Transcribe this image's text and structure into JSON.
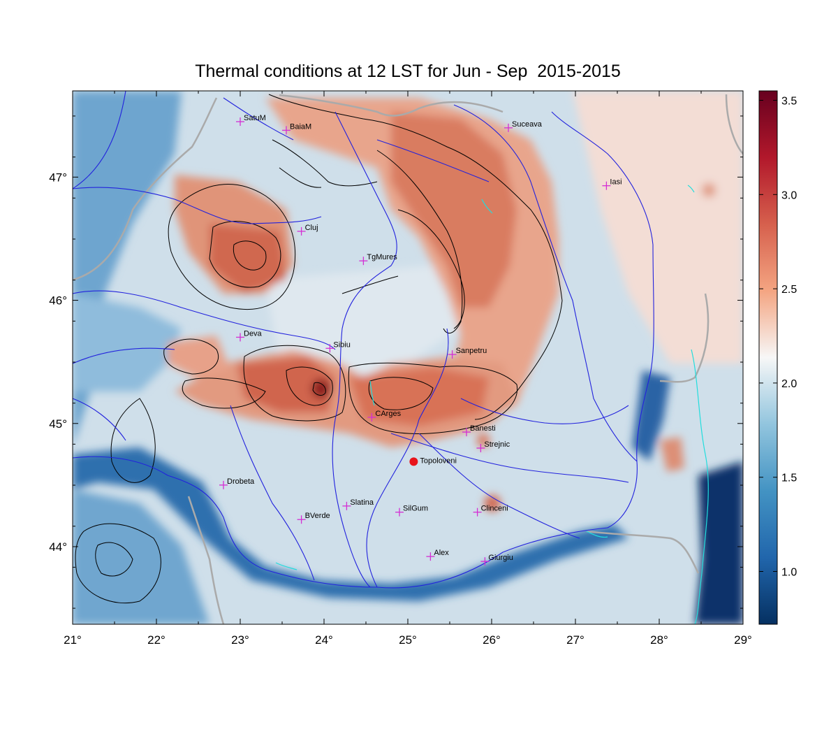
{
  "title": "Thermal conditions at 12 LST for Jun - Sep  2015-2015",
  "axes": {
    "lon_ticks": [
      "21°",
      "22°",
      "23°",
      "24°",
      "25°",
      "26°",
      "27°",
      "28°",
      "29°"
    ],
    "lat_ticks": [
      "47°",
      "46°",
      "45°",
      "44°"
    ]
  },
  "colorbar": {
    "ticks": [
      "3.5",
      "3.0",
      "2.5",
      "2.0",
      "1.5",
      "1.0"
    ],
    "colors": [
      "#67001f",
      "#b2182b",
      "#d6604d",
      "#f4a582",
      "#f7f7f7",
      "#92c5de",
      "#4393c3",
      "#2166ac",
      "#053061"
    ]
  },
  "stations": [
    {
      "name": "SatuM",
      "lon": 23.0,
      "lat": 47.45
    },
    {
      "name": "BaiaM",
      "lon": 23.55,
      "lat": 47.38
    },
    {
      "name": "Suceava",
      "lon": 26.2,
      "lat": 47.4
    },
    {
      "name": "Iasi",
      "lon": 27.37,
      "lat": 46.93
    },
    {
      "name": "Cluj",
      "lon": 23.73,
      "lat": 46.56
    },
    {
      "name": "TgMures",
      "lon": 24.47,
      "lat": 46.32
    },
    {
      "name": "Deva",
      "lon": 23.0,
      "lat": 45.7
    },
    {
      "name": "Sibiu",
      "lon": 24.07,
      "lat": 45.61
    },
    {
      "name": "Sanpetru",
      "lon": 25.53,
      "lat": 45.56
    },
    {
      "name": "CArges",
      "lon": 24.57,
      "lat": 45.05
    },
    {
      "name": "Banesti",
      "lon": 25.7,
      "lat": 44.93
    },
    {
      "name": "Strejnic",
      "lon": 25.87,
      "lat": 44.8
    },
    {
      "name": "Drobeta",
      "lon": 22.8,
      "lat": 44.5
    },
    {
      "name": "Slatina",
      "lon": 24.27,
      "lat": 44.33
    },
    {
      "name": "SilGum",
      "lon": 24.9,
      "lat": 44.28
    },
    {
      "name": "Clinceni",
      "lon": 25.83,
      "lat": 44.28
    },
    {
      "name": "BVerde",
      "lon": 23.73,
      "lat": 44.22
    },
    {
      "name": "Alex",
      "lon": 25.27,
      "lat": 43.92
    },
    {
      "name": "Giurgiu",
      "lon": 25.92,
      "lat": 43.88
    }
  ],
  "highlight_station": {
    "name": "Topoloveni",
    "lon": 25.07,
    "lat": 44.69,
    "color": "#e8141b"
  },
  "station_marker_color": "#d42fd4",
  "river_color": "#2222dd",
  "border_color": "#aaaaaa",
  "lake_color": "#22dddd"
}
